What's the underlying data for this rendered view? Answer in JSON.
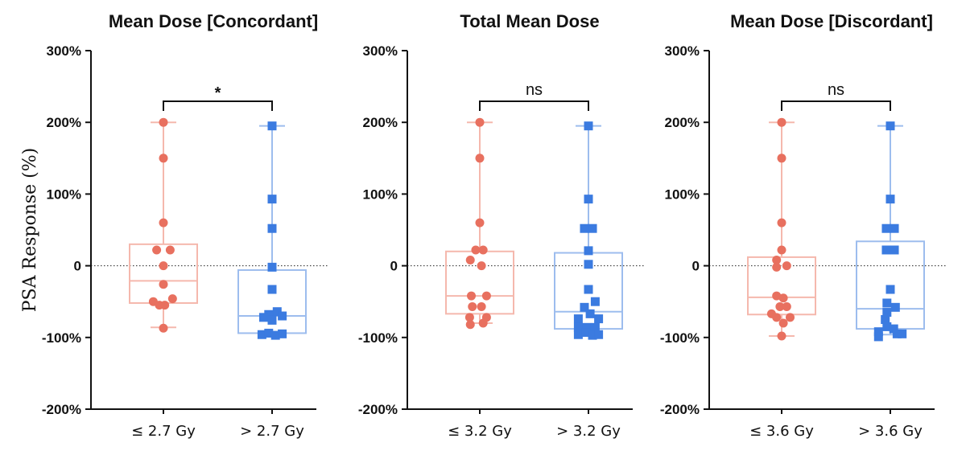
{
  "colors": {
    "group1": "#E8705F",
    "group1_light": "#F5B8AD",
    "group2": "#3B7BE0",
    "group2_light": "#9DBDEE",
    "axis": "#111111"
  },
  "chart_data": [
    {
      "type": "box",
      "title": "Mean Dose [Concordant]",
      "ylabel": "PSA Response (%)",
      "ylim": [
        -200,
        300
      ],
      "yticks": [
        {
          "value": 300,
          "label": "300%"
        },
        {
          "value": 200,
          "label": "200%"
        },
        {
          "value": 100,
          "label": "100%"
        },
        {
          "value": 0,
          "label": "0"
        },
        {
          "value": -100,
          "label": "-100%"
        },
        {
          "value": -200,
          "label": "-200%"
        }
      ],
      "reference_line": 0,
      "significance": "*",
      "groups": [
        {
          "name": "≤ 2.7 Gy",
          "marker": "circle",
          "box": {
            "min": -86,
            "q1": -52,
            "median": -21,
            "q3": 30,
            "max": 200
          },
          "points": [
            [
              0,
              200
            ],
            [
              0,
              150
            ],
            [
              0,
              60
            ],
            [
              -0.2,
              22
            ],
            [
              0.2,
              22
            ],
            [
              0,
              0
            ],
            [
              0,
              -26
            ],
            [
              -0.3,
              -50
            ],
            [
              -0.12,
              -55
            ],
            [
              0.04,
              -55
            ],
            [
              0.27,
              -46
            ],
            [
              0,
              -87
            ]
          ]
        },
        {
          "name": "> 2.7 Gy",
          "marker": "square",
          "box": {
            "min": -96,
            "q1": -94,
            "median": -70,
            "q3": -6,
            "max": 195
          },
          "points": [
            [
              0,
              195
            ],
            [
              0,
              93
            ],
            [
              0,
              52
            ],
            [
              0,
              -2
            ],
            [
              0,
              -33
            ],
            [
              0.15,
              -64
            ],
            [
              -0.1,
              -68
            ],
            [
              0.3,
              -70
            ],
            [
              -0.25,
              -72
            ],
            [
              0,
              -76
            ],
            [
              -0.3,
              -96
            ],
            [
              -0.1,
              -94
            ],
            [
              0.1,
              -97
            ],
            [
              0.3,
              -95
            ]
          ]
        }
      ]
    },
    {
      "type": "box",
      "title": "Total Mean Dose",
      "ylim": [
        -200,
        300
      ],
      "yticks": [
        {
          "value": 300,
          "label": "300%"
        },
        {
          "value": 200,
          "label": "200%"
        },
        {
          "value": 100,
          "label": "100%"
        },
        {
          "value": 0,
          "label": "0"
        },
        {
          "value": -100,
          "label": "-100%"
        },
        {
          "value": -200,
          "label": "-200%"
        }
      ],
      "reference_line": 0,
      "significance": "ns",
      "groups": [
        {
          "name": "≤ 3.2 Gy",
          "marker": "circle",
          "box": {
            "min": -80,
            "q1": -67,
            "median": -42,
            "q3": 20,
            "max": 200
          },
          "points": [
            [
              0,
              200
            ],
            [
              0,
              150
            ],
            [
              0,
              60
            ],
            [
              -0.12,
              22
            ],
            [
              0.1,
              22
            ],
            [
              -0.28,
              8
            ],
            [
              0.05,
              0
            ],
            [
              -0.25,
              -42
            ],
            [
              0.2,
              -42
            ],
            [
              -0.22,
              -57
            ],
            [
              0.05,
              -57
            ],
            [
              -0.3,
              -72
            ],
            [
              0.2,
              -72
            ],
            [
              -0.28,
              -82
            ],
            [
              0.1,
              -80
            ]
          ]
        },
        {
          "name": "> 3.2 Gy",
          "marker": "square",
          "box": {
            "min": -97,
            "q1": -88,
            "median": -64,
            "q3": 18,
            "max": 195
          },
          "points": [
            [
              0,
              195
            ],
            [
              0,
              93
            ],
            [
              -0.12,
              52
            ],
            [
              0.12,
              52
            ],
            [
              0,
              21
            ],
            [
              0,
              2
            ],
            [
              0,
              -33
            ],
            [
              0.2,
              -50
            ],
            [
              -0.12,
              -58
            ],
            [
              -0.3,
              -74
            ],
            [
              0.05,
              -67
            ],
            [
              0.3,
              -74
            ],
            [
              -0.3,
              -86
            ],
            [
              -0.05,
              -86
            ],
            [
              0.2,
              -86
            ],
            [
              -0.3,
              -96
            ],
            [
              -0.08,
              -93
            ],
            [
              0.12,
              -97
            ],
            [
              0.3,
              -96
            ]
          ]
        }
      ]
    },
    {
      "type": "box",
      "title": "Mean Dose [Discordant]",
      "ylim": [
        -200,
        300
      ],
      "yticks": [
        {
          "value": 300,
          "label": "300%"
        },
        {
          "value": 200,
          "label": "200%"
        },
        {
          "value": 100,
          "label": "100%"
        },
        {
          "value": 0,
          "label": "0"
        },
        {
          "value": -100,
          "label": "-100%"
        },
        {
          "value": -200,
          "label": "-200%"
        }
      ],
      "reference_line": 0,
      "significance": "ns",
      "groups": [
        {
          "name": "≤ 3.6 Gy",
          "marker": "circle",
          "box": {
            "min": -98,
            "q1": -68,
            "median": -44,
            "q3": 12,
            "max": 200
          },
          "points": [
            [
              0,
              200
            ],
            [
              0,
              150
            ],
            [
              0,
              60
            ],
            [
              0,
              22
            ],
            [
              -0.15,
              8
            ],
            [
              -0.15,
              -2
            ],
            [
              0.15,
              0
            ],
            [
              -0.15,
              -42
            ],
            [
              0.05,
              -45
            ],
            [
              -0.05,
              -57
            ],
            [
              0.15,
              -57
            ],
            [
              -0.3,
              -67
            ],
            [
              0.25,
              -72
            ],
            [
              -0.15,
              -72
            ],
            [
              0.05,
              -80
            ],
            [
              0,
              -98
            ]
          ]
        },
        {
          "name": "> 3.6 Gy",
          "marker": "square",
          "box": {
            "min": -96,
            "q1": -88,
            "median": -60,
            "q3": 34,
            "max": 195
          },
          "points": [
            [
              0,
              195
            ],
            [
              0,
              93
            ],
            [
              -0.12,
              52
            ],
            [
              0.12,
              52
            ],
            [
              -0.12,
              22
            ],
            [
              0.12,
              22
            ],
            [
              0,
              -33
            ],
            [
              -0.1,
              -52
            ],
            [
              0.15,
              -58
            ],
            [
              -0.1,
              -65
            ],
            [
              -0.15,
              -75
            ],
            [
              -0.1,
              -85
            ],
            [
              0.1,
              -88
            ],
            [
              -0.35,
              -92
            ],
            [
              0.2,
              -95
            ],
            [
              -0.35,
              -99
            ],
            [
              0.35,
              -95
            ]
          ]
        }
      ]
    }
  ]
}
